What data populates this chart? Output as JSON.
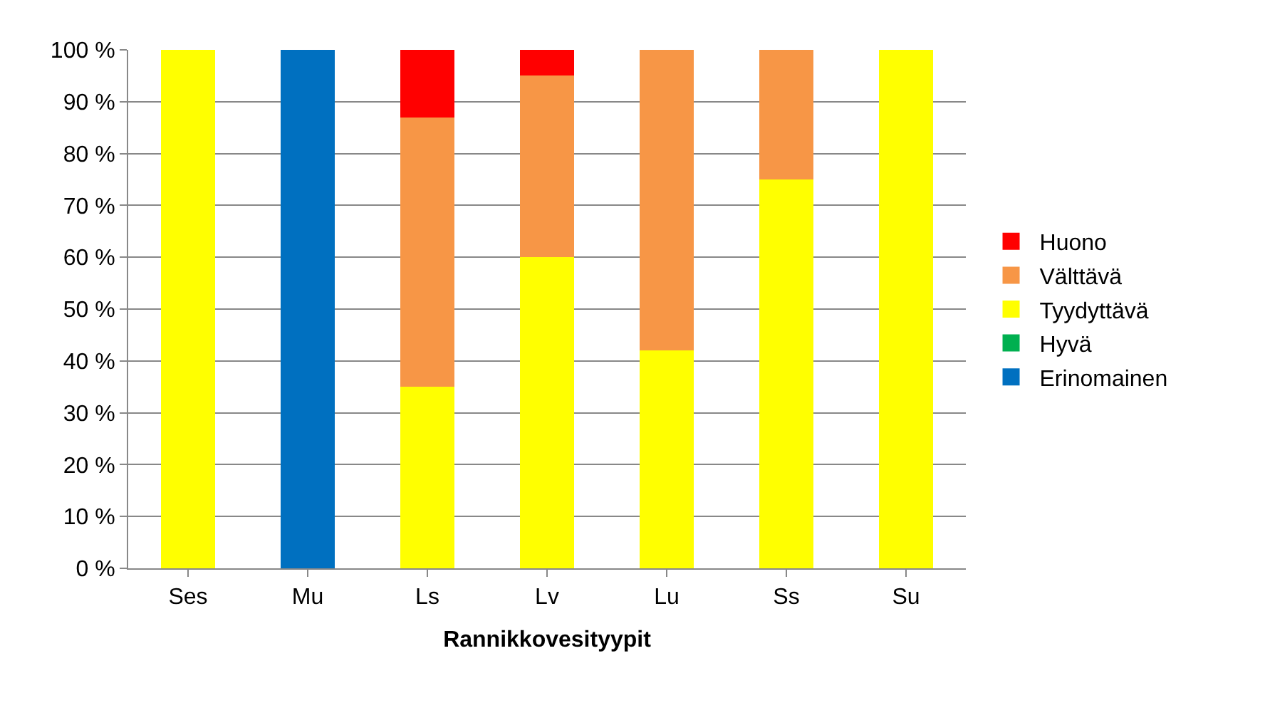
{
  "chart_data": {
    "type": "bar",
    "stacked": true,
    "xlabel": "Rannikkovesityypit",
    "categories": [
      "Ses",
      "Mu",
      "Ls",
      "Lv",
      "Lu",
      "Ss",
      "Su"
    ],
    "series": [
      {
        "name": "Erinomainen",
        "color": "#0070c0",
        "values": [
          0,
          100,
          0,
          0,
          0,
          0,
          0
        ]
      },
      {
        "name": "Hyvä",
        "color": "#00b050",
        "values": [
          0,
          0,
          0,
          0,
          0,
          0,
          0
        ]
      },
      {
        "name": "Tyydyttävä",
        "color": "#ffff00",
        "values": [
          100,
          0,
          35,
          60,
          42,
          75,
          100
        ]
      },
      {
        "name": "Välttävä",
        "color": "#f79646",
        "values": [
          0,
          0,
          52,
          35,
          58,
          25,
          0
        ]
      },
      {
        "name": "Huono",
        "color": "#ff0000",
        "values": [
          0,
          0,
          13,
          5,
          0,
          0,
          0
        ]
      }
    ],
    "ylim": [
      0,
      100
    ],
    "yticks": [
      {
        "value": 0,
        "label": "0 %"
      },
      {
        "value": 10,
        "label": "10 %"
      },
      {
        "value": 20,
        "label": "20 %"
      },
      {
        "value": 30,
        "label": "30 %"
      },
      {
        "value": 40,
        "label": "40 %"
      },
      {
        "value": 50,
        "label": "50 %"
      },
      {
        "value": 60,
        "label": "60 %"
      },
      {
        "value": 70,
        "label": "70 %"
      },
      {
        "value": 80,
        "label": "80 %"
      },
      {
        "value": 90,
        "label": "90 %"
      },
      {
        "value": 100,
        "label": "100 %"
      }
    ],
    "grid": "y",
    "legend": "right"
  }
}
